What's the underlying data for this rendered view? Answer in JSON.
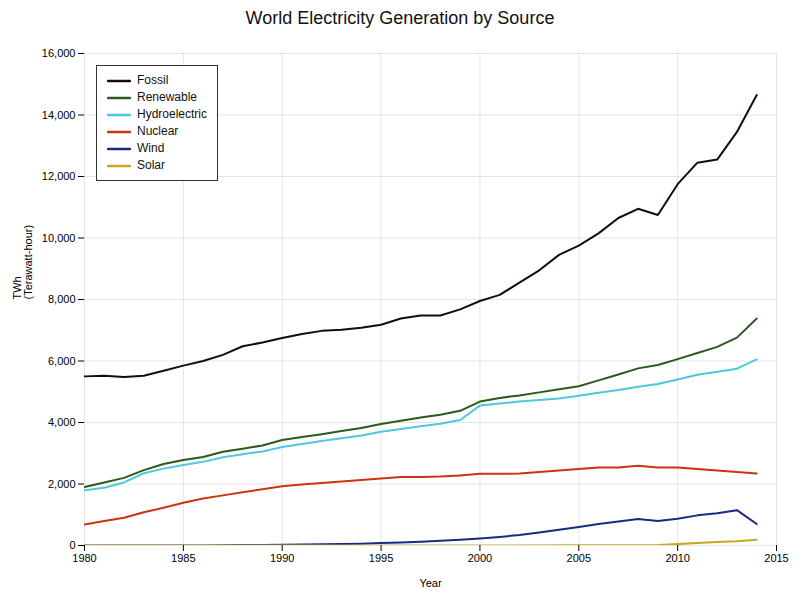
{
  "chart_data": {
    "type": "line",
    "title": "World Electricity Generation by Source",
    "xlabel": "Year",
    "ylabel": "TWh\n(Terawatt-hour)",
    "xlim": [
      1980,
      2015
    ],
    "ylim": [
      0,
      16000
    ],
    "xticks": [
      1980,
      1985,
      1990,
      1995,
      2000,
      2005,
      2010,
      2015
    ],
    "yticks": [
      0,
      {
        "value": 2000,
        "label": "2,000"
      },
      {
        "value": 4000,
        "label": "4,000"
      },
      {
        "value": 6000,
        "label": "6,000"
      },
      {
        "value": 8000,
        "label": "8,000"
      },
      {
        "value": 10000,
        "label": "10,000"
      },
      {
        "value": 12000,
        "label": "12,000"
      },
      {
        "value": 14000,
        "label": "14,000"
      },
      {
        "value": 16000,
        "label": "16,000"
      }
    ],
    "grid": true,
    "legend": "upper left",
    "series": [
      {
        "name": "Fossil",
        "color": "#1a0a0a",
        "x": [
          1980,
          1981,
          1982,
          1983,
          1984,
          1985,
          1986,
          1987,
          1988,
          1989,
          1990,
          1991,
          1992,
          1993,
          1994,
          1995,
          1996,
          1997,
          1998,
          1999,
          2000,
          2001,
          2002,
          2003,
          2004,
          2005,
          2006,
          2007,
          2008,
          2009,
          2010,
          2011,
          2012,
          2013,
          2014
        ],
        "values": [
          5500,
          5520,
          5480,
          5520,
          5680,
          5850,
          6000,
          6200,
          6480,
          6600,
          6750,
          6880,
          6980,
          7020,
          7080,
          7180,
          7380,
          7480,
          7480,
          7680,
          7950,
          8150,
          8550,
          8950,
          9450,
          9750,
          10150,
          10650,
          10950,
          10750,
          11750,
          12450,
          12550,
          13450,
          14650
        ]
      },
      {
        "name": "Renewable",
        "color": "#2d5a1b",
        "x": [
          1980,
          1981,
          1982,
          1983,
          1984,
          1985,
          1986,
          1987,
          1988,
          1989,
          1990,
          1991,
          1992,
          1993,
          1994,
          1995,
          1996,
          1997,
          1998,
          1999,
          2000,
          2001,
          2002,
          2003,
          2004,
          2005,
          2006,
          2007,
          2008,
          2009,
          2010,
          2011,
          2012,
          2013,
          2014
        ],
        "values": [
          1900,
          2050,
          2200,
          2450,
          2650,
          2780,
          2880,
          3050,
          3150,
          3250,
          3430,
          3530,
          3620,
          3720,
          3820,
          3950,
          4060,
          4160,
          4250,
          4380,
          4680,
          4800,
          4880,
          4980,
          5080,
          5180,
          5370,
          5560,
          5760,
          5870,
          6060,
          6260,
          6460,
          6760,
          7380
        ]
      },
      {
        "name": "Hydroelectric",
        "color": "#4dc8e0",
        "x": [
          1980,
          1981,
          1982,
          1983,
          1984,
          1985,
          1986,
          1987,
          1988,
          1989,
          1990,
          1991,
          1992,
          1993,
          1994,
          1995,
          1996,
          1997,
          1998,
          1999,
          2000,
          2001,
          2002,
          2003,
          2004,
          2005,
          2006,
          2007,
          2008,
          2009,
          2010,
          2011,
          2012,
          2013,
          2014
        ],
        "values": [
          1800,
          1880,
          2050,
          2350,
          2500,
          2620,
          2720,
          2870,
          2970,
          3060,
          3200,
          3300,
          3400,
          3490,
          3580,
          3700,
          3790,
          3880,
          3960,
          4080,
          4550,
          4620,
          4680,
          4730,
          4780,
          4870,
          4970,
          5060,
          5160,
          5250,
          5400,
          5550,
          5650,
          5750,
          6050
        ]
      },
      {
        "name": "Nuclear",
        "color": "#cc3311",
        "x": [
          1980,
          1981,
          1982,
          1983,
          1984,
          1985,
          1986,
          1987,
          1988,
          1989,
          1990,
          1991,
          1992,
          1993,
          1994,
          1995,
          1996,
          1997,
          1998,
          1999,
          2000,
          2001,
          2002,
          2003,
          2004,
          2005,
          2006,
          2007,
          2008,
          2009,
          2010,
          2011,
          2012,
          2013,
          2014
        ],
        "values": [
          680,
          800,
          900,
          1080,
          1230,
          1390,
          1530,
          1630,
          1730,
          1830,
          1930,
          1980,
          2030,
          2080,
          2130,
          2180,
          2230,
          2230,
          2240,
          2280,
          2330,
          2330,
          2340,
          2390,
          2440,
          2490,
          2540,
          2540,
          2590,
          2540,
          2540,
          2490,
          2440,
          2390,
          2340
        ]
      },
      {
        "name": "Wind",
        "color": "#1a2a7e",
        "x": [
          1980,
          1981,
          1982,
          1983,
          1984,
          1985,
          1986,
          1987,
          1988,
          1989,
          1990,
          1991,
          1992,
          1993,
          1994,
          1995,
          1996,
          1997,
          1998,
          1999,
          2000,
          2001,
          2002,
          2003,
          2004,
          2005,
          2006,
          2007,
          2008,
          2009,
          2010,
          2011,
          2012,
          2013,
          2014
        ],
        "values": [
          0,
          0,
          0,
          0,
          0,
          0,
          0,
          10,
          15,
          20,
          25,
          30,
          40,
          50,
          60,
          80,
          100,
          125,
          155,
          190,
          230,
          280,
          340,
          420,
          510,
          600,
          700,
          780,
          860,
          800,
          870,
          980,
          1050,
          1150,
          700
        ]
      },
      {
        "name": "Solar",
        "color": "#c8a820",
        "x": [
          1980,
          1985,
          1990,
          1995,
          2000,
          2005,
          2008,
          2009,
          2010,
          2011,
          2012,
          2013,
          2014
        ],
        "values": [
          0,
          0,
          0,
          0,
          0,
          5,
          12,
          20,
          45,
          80,
          110,
          140,
          185
        ]
      }
    ]
  }
}
